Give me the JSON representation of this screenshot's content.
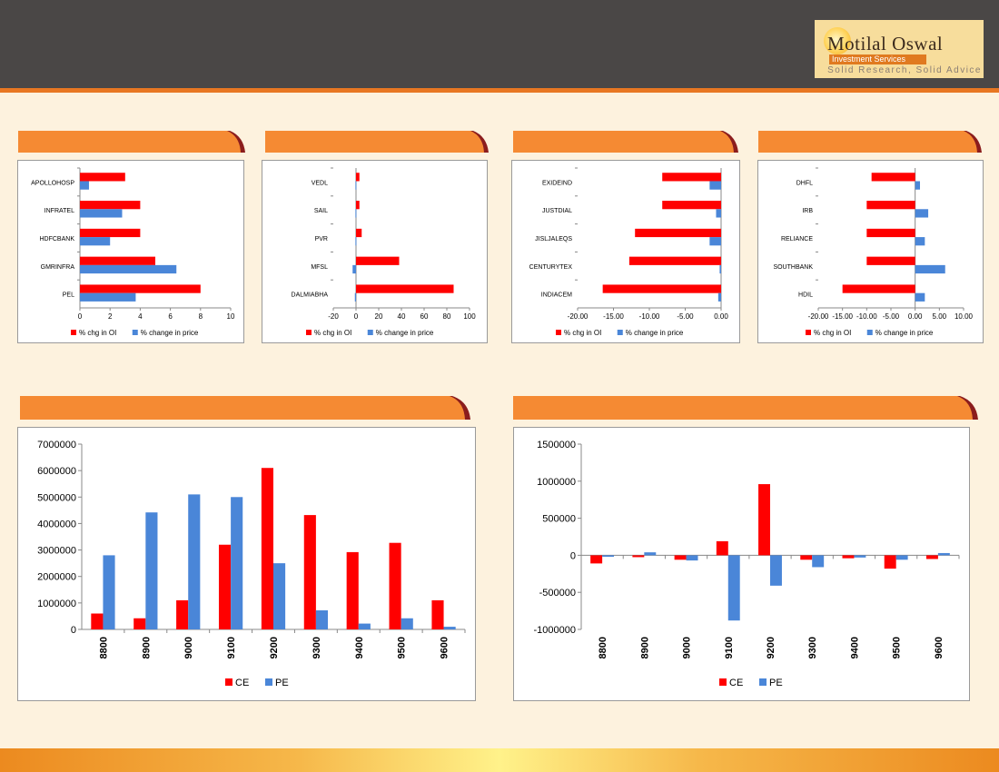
{
  "brand": {
    "name": "Motilal Oswal",
    "subtitle": "Investment Services",
    "tagline": "Solid Research, Solid Advice",
    "accent": "#e87722"
  },
  "colors": {
    "red": "#ff0000",
    "blue": "#4a86d8",
    "header": "#4a4746",
    "tab": "#f58a33"
  },
  "charts": [
    {
      "type": "bar",
      "orientation": "horizontal",
      "categories": [
        "APOLLOHOSP",
        "INFRATEL",
        "HDFCBANK",
        "GMRINFRA",
        "PEL"
      ],
      "series": [
        {
          "name": "% chg in OI",
          "values": [
            3.0,
            4.0,
            4.0,
            5.0,
            8.0
          ]
        },
        {
          "name": "% change in price",
          "values": [
            0.6,
            2.8,
            2.0,
            6.4,
            3.7
          ]
        }
      ],
      "xlim": [
        0,
        10
      ],
      "xticks": [
        "0",
        "2",
        "4",
        "6",
        "8",
        "10"
      ]
    },
    {
      "type": "bar",
      "orientation": "horizontal",
      "categories": [
        "VEDL",
        "SAIL",
        "PVR",
        "MFSL",
        "DALMIABHA"
      ],
      "series": [
        {
          "name": "% chg in OI",
          "values": [
            3,
            3,
            5,
            38,
            86
          ]
        },
        {
          "name": "% change in price",
          "values": [
            -0.5,
            -0.5,
            -0.5,
            -3,
            -1
          ]
        }
      ],
      "xlim": [
        -20,
        100
      ],
      "xticks": [
        "-20",
        "0",
        "20",
        "40",
        "60",
        "80",
        "100"
      ]
    },
    {
      "type": "bar",
      "orientation": "horizontal",
      "categories": [
        "EXIDEIND",
        "JUSTDIAL",
        "JISLJALEQS",
        "CENTURYTEX",
        "INDIACEM"
      ],
      "series": [
        {
          "name": "% chg in OI",
          "values": [
            -8.2,
            -8.2,
            -12.0,
            -12.8,
            -16.5
          ]
        },
        {
          "name": "% change in price",
          "values": [
            -1.6,
            -0.7,
            -1.6,
            -0.2,
            -0.4
          ]
        }
      ],
      "xlim": [
        -20,
        0
      ],
      "xticks": [
        "-20.00",
        "-15.00",
        "-10.00",
        "-5.00",
        "0.00"
      ]
    },
    {
      "type": "bar",
      "orientation": "horizontal",
      "categories": [
        "DHFL",
        "IRB",
        "RELIANCE",
        "SOUTHBANK",
        "HDIL"
      ],
      "series": [
        {
          "name": "% chg in OI",
          "values": [
            -9.0,
            -10.0,
            -10.0,
            -10.0,
            -15.0
          ]
        },
        {
          "name": "% change in price",
          "values": [
            1.0,
            2.7,
            2.0,
            6.2,
            2.0
          ]
        }
      ],
      "xlim": [
        -20,
        10
      ],
      "xticks": [
        "-20.00",
        "-15.00",
        "-10.00",
        "-5.00",
        "0.00",
        "5.00",
        "10.00"
      ]
    },
    {
      "type": "bar",
      "orientation": "vertical",
      "categories": [
        "8800",
        "8900",
        "9000",
        "9100",
        "9200",
        "9300",
        "9400",
        "9500",
        "9600"
      ],
      "series": [
        {
          "name": "CE",
          "values": [
            600000,
            420000,
            1100000,
            3200000,
            6100000,
            4320000,
            2920000,
            3270000,
            1100000
          ]
        },
        {
          "name": "PE",
          "values": [
            2800000,
            4420000,
            5100000,
            5000000,
            2500000,
            720000,
            220000,
            420000,
            100000
          ]
        }
      ],
      "ylim": [
        0,
        7000000
      ],
      "yticks": [
        "0",
        "1000000",
        "2000000",
        "3000000",
        "4000000",
        "5000000",
        "6000000",
        "7000000"
      ]
    },
    {
      "type": "bar",
      "orientation": "vertical",
      "categories": [
        "8800",
        "8900",
        "9000",
        "9100",
        "9200",
        "9300",
        "9400",
        "9500",
        "9600"
      ],
      "series": [
        {
          "name": "CE",
          "values": [
            -110000,
            -25000,
            -60000,
            190000,
            960000,
            -60000,
            -40000,
            -180000,
            -50000
          ]
        },
        {
          "name": "PE",
          "values": [
            -20000,
            40000,
            -70000,
            -880000,
            -410000,
            -160000,
            -30000,
            -60000,
            30000
          ]
        }
      ],
      "ylim": [
        -1000000,
        1500000
      ],
      "yticks": [
        "-1000000",
        "-500000",
        "0",
        "500000",
        "1000000",
        "1500000"
      ]
    }
  ]
}
